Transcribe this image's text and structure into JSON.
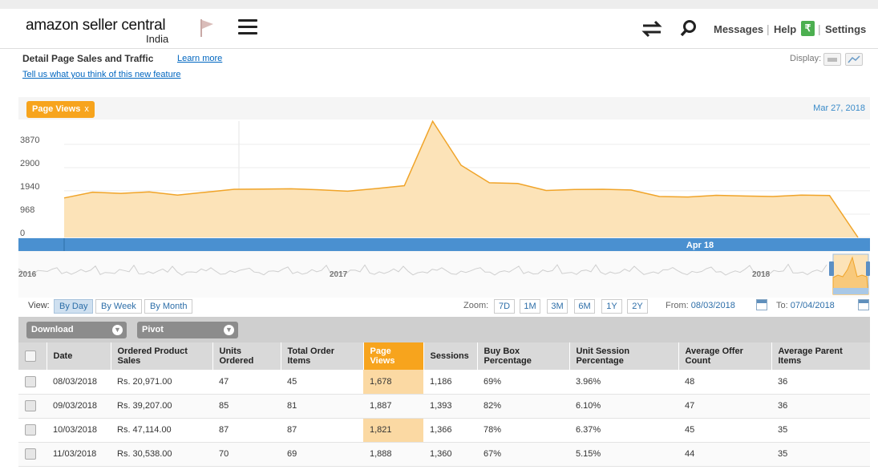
{
  "header": {
    "logo_main": "amazon seller central",
    "logo_sub": "India",
    "messages": "Messages",
    "help": "Help",
    "settings": "Settings",
    "rupee_icon": "₹"
  },
  "page": {
    "title": "Detail Page Sales and Traffic",
    "learn_more": "Learn more",
    "feedback": "Tell us what you think of this new feature",
    "display_label": "Display:"
  },
  "chart": {
    "chip_label": "Page Views",
    "chip_close": "x",
    "date_label": "Mar 27, 2018",
    "nav_label": "Apr 18",
    "fill_color": "#fce3b8",
    "line_color": "#f0a429"
  },
  "chart_data": {
    "type": "area",
    "title": "",
    "y_ticks": [
      "3870",
      "2900",
      "1940",
      "968",
      "0"
    ],
    "ylim": [
      0,
      4836
    ],
    "series": [
      {
        "values": [
          1640,
          1880,
          1830,
          1890,
          1760,
          1880,
          2000,
          2010,
          2020,
          1980,
          1920,
          2030,
          2150,
          4830,
          3000,
          2270,
          2240,
          1950,
          1990,
          2000,
          1970,
          1700,
          1680,
          1750,
          1720,
          1700,
          1760,
          1740,
          0
        ]
      }
    ],
    "navigator_labels": [
      "2016",
      "2017",
      "2018"
    ]
  },
  "controls": {
    "view_label": "View:",
    "by_day": "By Day",
    "by_week": "By Week",
    "by_month": "By Month",
    "zoom_label": "Zoom:",
    "zoom_options": [
      "7D",
      "1M",
      "3M",
      "6M",
      "1Y",
      "2Y"
    ],
    "from_label": "From:",
    "from_date": "08/03/2018",
    "to_label": "To:",
    "to_date": "07/04/2018"
  },
  "toolbar": {
    "download": "Download",
    "pivot": "Pivot"
  },
  "table": {
    "columns": [
      "Date",
      "Ordered Product Sales",
      "Units Ordered",
      "Total Order Items",
      "Page Views",
      "Sessions",
      "Buy Box Percentage",
      "Unit Session Percentage",
      "Average Offer Count",
      "Average Parent Items"
    ],
    "rows": [
      [
        "08/03/2018",
        "Rs. 20,971.00",
        "47",
        "45",
        "1,678",
        "1,186",
        "69%",
        "3.96%",
        "48",
        "36"
      ],
      [
        "09/03/2018",
        "Rs. 39,207.00",
        "85",
        "81",
        "1,887",
        "1,393",
        "82%",
        "6.10%",
        "47",
        "36"
      ],
      [
        "10/03/2018",
        "Rs. 47,114.00",
        "87",
        "87",
        "1,821",
        "1,366",
        "78%",
        "6.37%",
        "45",
        "35"
      ],
      [
        "11/03/2018",
        "Rs. 30,538.00",
        "70",
        "69",
        "1,888",
        "1,360",
        "67%",
        "5.15%",
        "44",
        "35"
      ]
    ]
  }
}
